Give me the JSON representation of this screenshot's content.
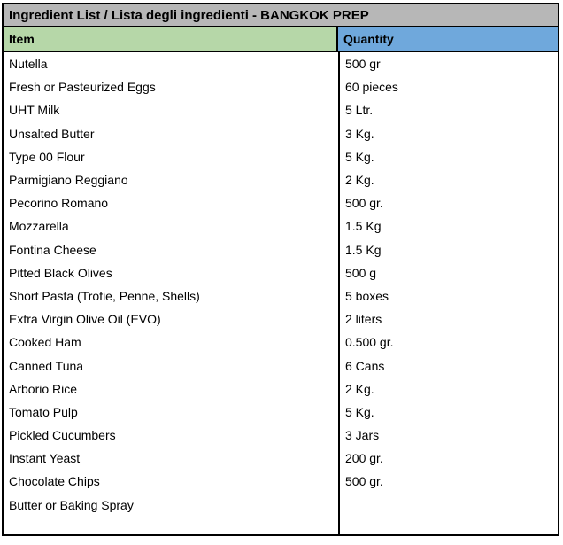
{
  "title": "Ingredient List / Lista degli ingredienti - BANGKOK PREP",
  "columns": {
    "item": "Item",
    "quantity": "Quantity"
  },
  "colors": {
    "title_bg": "#b7b7b7",
    "item_header_bg": "#b6d7a8",
    "quantity_header_bg": "#6fa8dc",
    "border": "#000000",
    "text": "#000000"
  },
  "rows": [
    {
      "item": "Nutella",
      "quantity": "500 gr"
    },
    {
      "item": "Fresh or Pasteurized Eggs",
      "quantity": "60 pieces"
    },
    {
      "item": "UHT Milk",
      "quantity": "5 Ltr."
    },
    {
      "item": "Unsalted Butter",
      "quantity": "3 Kg."
    },
    {
      "item": "Type 00 Flour",
      "quantity": "5 Kg."
    },
    {
      "item": "Parmigiano Reggiano",
      "quantity": "2 Kg."
    },
    {
      "item": "Pecorino Romano",
      "quantity": "500 gr."
    },
    {
      "item": "Mozzarella",
      "quantity": "1.5 Kg"
    },
    {
      "item": "Fontina Cheese",
      "quantity": "1.5 Kg"
    },
    {
      "item": "Pitted Black Olives",
      "quantity": "500 g"
    },
    {
      "item": "Short Pasta (Trofie, Penne, Shells)",
      "quantity": "5 boxes"
    },
    {
      "item": "Extra Virgin Olive Oil (EVO)",
      "quantity": "2 liters"
    },
    {
      "item": "Cooked Ham",
      "quantity": "0.500 gr."
    },
    {
      "item": "Canned Tuna",
      "quantity": "6 Cans"
    },
    {
      "item": "Arborio Rice",
      "quantity": "2 Kg."
    },
    {
      "item": "Tomato Pulp",
      "quantity": "5 Kg."
    },
    {
      "item": "Pickled Cucumbers",
      "quantity": "3 Jars"
    },
    {
      "item": "Instant Yeast",
      "quantity": "200 gr."
    },
    {
      "item": "Chocolate Chips",
      "quantity": "500 gr."
    },
    {
      "item": "Butter or Baking Spray",
      "quantity": ""
    }
  ]
}
